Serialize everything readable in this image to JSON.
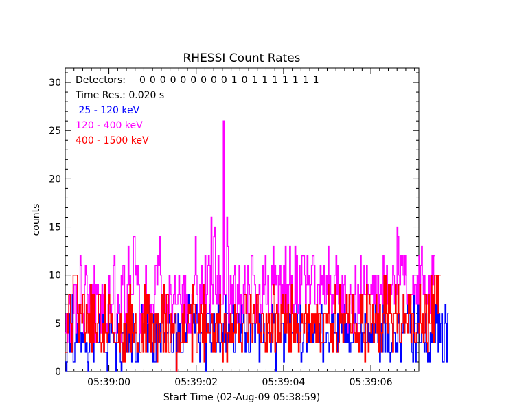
{
  "chart_data": {
    "type": "line",
    "title": "RHESSI Count Rates",
    "xlabel": "Start Time (02-Aug-09 05:38:59)",
    "ylabel": "counts",
    "x_tick_labels": [
      "05:39:00",
      "05:39:02",
      "05:39:04",
      "05:39:06"
    ],
    "x_tick_seconds": [
      1,
      3,
      5,
      7
    ],
    "xlim_seconds": [
      0,
      8.1
    ],
    "ylim": [
      0,
      31.5
    ],
    "y_ticks": [
      0,
      5,
      10,
      15,
      20,
      25,
      30
    ],
    "grid": false,
    "annotations": {
      "detectors_label": "Detectors:",
      "detectors_flags": "0 0 0 0 0 0 0 0 0 1 0 1 1 1 1 1 1 1",
      "time_res": "Time Res.: 0.020 s"
    },
    "series": [
      {
        "name": " 25 - 120 keV",
        "color": "#0000ff",
        "x_start": 0,
        "dx": 0.02,
        "values": [
          1,
          0,
          3,
          6,
          6,
          2,
          3,
          2,
          8,
          1,
          1,
          3,
          6,
          3,
          5,
          3,
          6,
          4,
          2,
          4,
          3,
          5,
          3,
          2,
          3,
          1,
          0,
          2,
          5,
          4,
          4,
          5,
          1,
          4,
          4,
          3,
          4,
          3,
          3,
          6,
          4,
          5,
          5,
          7,
          2,
          2,
          2,
          2,
          0,
          5,
          3,
          5,
          5,
          4,
          4,
          3,
          3,
          3,
          0,
          4,
          7,
          7,
          3,
          1,
          0,
          4,
          4,
          3,
          3,
          5,
          2,
          5,
          2,
          6,
          3,
          4,
          1,
          6,
          4,
          4,
          1,
          1,
          3,
          1,
          2,
          6,
          4,
          7,
          5,
          4,
          4,
          7,
          7,
          6,
          2,
          5,
          7,
          3,
          2,
          3,
          1,
          6,
          1,
          1,
          6,
          4,
          6,
          3,
          5,
          2,
          8,
          6,
          4,
          4,
          3,
          3,
          4,
          4,
          8,
          5,
          4,
          4,
          2,
          2,
          5,
          5,
          6,
          0,
          4,
          6,
          2,
          5,
          2,
          2,
          2,
          3,
          6,
          4,
          3,
          6,
          5,
          8,
          7,
          6,
          4,
          7,
          5,
          6,
          4,
          6,
          7,
          5,
          5,
          3,
          1,
          4,
          4,
          4,
          7,
          3,
          5,
          0,
          6,
          6,
          6,
          7,
          3,
          2,
          3,
          3,
          6,
          4,
          2,
          3,
          6,
          8,
          3,
          2,
          3,
          4,
          3,
          5,
          3,
          8,
          2,
          6,
          6,
          3,
          6,
          4,
          6,
          6,
          7,
          2,
          2,
          5,
          6,
          6,
          6,
          3,
          3,
          8,
          4,
          5,
          6,
          4,
          2,
          4,
          8,
          6,
          2,
          2,
          5,
          5,
          4,
          5,
          5,
          3,
          5,
          6,
          4,
          6,
          1,
          4,
          6,
          3,
          3,
          5,
          3,
          3,
          5,
          5,
          4,
          4,
          4,
          2,
          7,
          4,
          6,
          5,
          3,
          0,
          3,
          6,
          6,
          3,
          3,
          5,
          5,
          5,
          1,
          5,
          3,
          6,
          7,
          5,
          6,
          5,
          7,
          4,
          4,
          4,
          5,
          6,
          5,
          7,
          3,
          3,
          3,
          7,
          1,
          2,
          3,
          4,
          5,
          5,
          2,
          4,
          3,
          6,
          3,
          4,
          3,
          4,
          3,
          4,
          5,
          4,
          6,
          3,
          5,
          3,
          4,
          7,
          6,
          1,
          3,
          3,
          3,
          4,
          4,
          3,
          2,
          3,
          4,
          6,
          5,
          6,
          4,
          4,
          4,
          2,
          6,
          3,
          6,
          6,
          4,
          8,
          5,
          3,
          7,
          3,
          5,
          3,
          6,
          2,
          2,
          3,
          3,
          3,
          5,
          5,
          6,
          3,
          4,
          5,
          5,
          5,
          6,
          2,
          4,
          4,
          4,
          6,
          3,
          3,
          5,
          3,
          4,
          3,
          5,
          3,
          5,
          3,
          4,
          7,
          5,
          4,
          3,
          3,
          1,
          4,
          5,
          2,
          7,
          5,
          2,
          5,
          5,
          2,
          5,
          2,
          1,
          2,
          3,
          5,
          4,
          4,
          2,
          3,
          2,
          5,
          6,
          3,
          1,
          4,
          4,
          8,
          4,
          6,
          6,
          6,
          7,
          6,
          7,
          4,
          5,
          2,
          1,
          8,
          3,
          1,
          3,
          4,
          8,
          4,
          3,
          3,
          4,
          4,
          4,
          2,
          3,
          6,
          2,
          1,
          2,
          1,
          4,
          3,
          6,
          3,
          5,
          3,
          7,
          5,
          7,
          2,
          6,
          3,
          5,
          6,
          1,
          1,
          5,
          7,
          5,
          1,
          6
        ]
      },
      {
        "name": "120 - 400 keV",
        "color": "#ff00ff",
        "x_start": 0,
        "dx": 0.02,
        "values": [
          4,
          6,
          3,
          6,
          8,
          7,
          3,
          4,
          3,
          6,
          9,
          9,
          4,
          9,
          7,
          6,
          5,
          12,
          11,
          7,
          6,
          4,
          9,
          11,
          10,
          8,
          5,
          4,
          9,
          7,
          8,
          9,
          8,
          11,
          3,
          9,
          8,
          9,
          6,
          6,
          8,
          4,
          9,
          6,
          8,
          9,
          5,
          4,
          5,
          7,
          10,
          6,
          6,
          7,
          7,
          11,
          12,
          4,
          4,
          6,
          8,
          6,
          3,
          3,
          10,
          9,
          11,
          11,
          4,
          6,
          5,
          9,
          13,
          9,
          10,
          8,
          8,
          8,
          14,
          14,
          10,
          11,
          9,
          11,
          9,
          4,
          6,
          3,
          6,
          7,
          6,
          9,
          11,
          5,
          5,
          7,
          8,
          7,
          5,
          7,
          7,
          6,
          8,
          11,
          11,
          9,
          12,
          11,
          14,
          10,
          7,
          6,
          5,
          6,
          8,
          6,
          7,
          5,
          6,
          10,
          9,
          8,
          4,
          7,
          8,
          10,
          7,
          7,
          7,
          8,
          10,
          8,
          7,
          5,
          9,
          10,
          6,
          10,
          5,
          8,
          6,
          4,
          5,
          4,
          6,
          8,
          7,
          9,
          10,
          14,
          10,
          8,
          5,
          6,
          9,
          7,
          11,
          7,
          5,
          8,
          12,
          6,
          8,
          11,
          12,
          11,
          6,
          16,
          9,
          7,
          14,
          15,
          8,
          7,
          10,
          12,
          7,
          10,
          7,
          7,
          7,
          26,
          8,
          8,
          8,
          16,
          13,
          5,
          7,
          10,
          6,
          9,
          7,
          10,
          11,
          5,
          5,
          9,
          7,
          11,
          5,
          8,
          7,
          6,
          9,
          11,
          8,
          8,
          6,
          11,
          9,
          8,
          6,
          12,
          12,
          10,
          10,
          9,
          5,
          7,
          4,
          8,
          9,
          7,
          6,
          6,
          11,
          8,
          9,
          12,
          7,
          7,
          10,
          5,
          6,
          6,
          11,
          9,
          13,
          8,
          11,
          9,
          10,
          10,
          6,
          9,
          11,
          7,
          9,
          7,
          11,
          6,
          13,
          5,
          9,
          7,
          9,
          13,
          6,
          10,
          7,
          6,
          7,
          13,
          7,
          12,
          6,
          7,
          11,
          7,
          9,
          12,
          12,
          12,
          10,
          7,
          9,
          12,
          9,
          10,
          7,
          9,
          11,
          12,
          12,
          11,
          7,
          7,
          5,
          9,
          9,
          7,
          11,
          9,
          10,
          8,
          11,
          7,
          7,
          10,
          8,
          13,
          6,
          10,
          8,
          6,
          8,
          7,
          10,
          10,
          12,
          8,
          11,
          7,
          8,
          9,
          6,
          10,
          6,
          9,
          10,
          6,
          6,
          4,
          5,
          7,
          9,
          8,
          6,
          7,
          4,
          8,
          11,
          5,
          4,
          9,
          6,
          8,
          12,
          7,
          6,
          8,
          11,
          8,
          8,
          11,
          9,
          8,
          8,
          8,
          9,
          8,
          10,
          7,
          10,
          7,
          5,
          10,
          10,
          6,
          8,
          9,
          8,
          7,
          12,
          6,
          10,
          10,
          11,
          7,
          8,
          6,
          6,
          8,
          9,
          11,
          10,
          7,
          7,
          8,
          15,
          14,
          10,
          9,
          12,
          11,
          12,
          10,
          9,
          12,
          10,
          7,
          8,
          7,
          8,
          7,
          8,
          8,
          10,
          8,
          9,
          9,
          7,
          10,
          7,
          12,
          9,
          11,
          13,
          10,
          8,
          10,
          8,
          7,
          7,
          8,
          10,
          6,
          10,
          9,
          12,
          9,
          12
        ]
      },
      {
        "name": "400 - 1500 keV",
        "color": "#ff0000",
        "x_start": 0,
        "dx": 0.02,
        "values": [
          2,
          2,
          6,
          4,
          8,
          8,
          5,
          2,
          5,
          10,
          10,
          10,
          10,
          10,
          6,
          3,
          7,
          7,
          6,
          5,
          8,
          8,
          3,
          4,
          7,
          6,
          4,
          6,
          3,
          9,
          2,
          8,
          3,
          8,
          5,
          4,
          3,
          5,
          8,
          8,
          3,
          2,
          3,
          5,
          2,
          9,
          4,
          4,
          3,
          4,
          8,
          7,
          5,
          6,
          4,
          4,
          3,
          3,
          3,
          3,
          3,
          5,
          2,
          6,
          4,
          3,
          1,
          5,
          1,
          5,
          6,
          2,
          8,
          4,
          9,
          2,
          7,
          4,
          3,
          5,
          6,
          4,
          2,
          3,
          2,
          2,
          2,
          3,
          6,
          2,
          4,
          9,
          2,
          8,
          6,
          8,
          3,
          6,
          2,
          6,
          5,
          2,
          3,
          6,
          5,
          1,
          6,
          5,
          3,
          4,
          8,
          5,
          2,
          9,
          6,
          2,
          8,
          8,
          2,
          2,
          3,
          6,
          4,
          5,
          4,
          6,
          6,
          0,
          2,
          4,
          4,
          2,
          3,
          3,
          6,
          3,
          7,
          3,
          3,
          3,
          5,
          7,
          6,
          6,
          7,
          1,
          9,
          7,
          7,
          5,
          2,
          2,
          4,
          6,
          4,
          7,
          6,
          3,
          9,
          1,
          7,
          3,
          4,
          5,
          4,
          4,
          4,
          5,
          6,
          2,
          4,
          2,
          5,
          6,
          3,
          6,
          5,
          8,
          5,
          3,
          1,
          3,
          6,
          6,
          4,
          1,
          4,
          4,
          3,
          6,
          3,
          5,
          3,
          4,
          7,
          4,
          6,
          6,
          3,
          5,
          3,
          3,
          2,
          5,
          5,
          8,
          8,
          6,
          4,
          3,
          6,
          5,
          8,
          5,
          3,
          6,
          7,
          5,
          5,
          8,
          8,
          4,
          5,
          4,
          3,
          6,
          6,
          4,
          3,
          2,
          6,
          2,
          5,
          6,
          3,
          4,
          6,
          3,
          9,
          8,
          2,
          6,
          7,
          3,
          6,
          4,
          3,
          7,
          6,
          8,
          6,
          4,
          8,
          4,
          6,
          7,
          2,
          5,
          2,
          9,
          6,
          3,
          6,
          3,
          6,
          4,
          5,
          2,
          3,
          4,
          5,
          6,
          5,
          4,
          6,
          7,
          3,
          6,
          5,
          7,
          5,
          3,
          6,
          4,
          6,
          5,
          6,
          3,
          7,
          3,
          6,
          6,
          2,
          3,
          3,
          3,
          6,
          6,
          6,
          5,
          6,
          9,
          5,
          5,
          3,
          5,
          2,
          5,
          6,
          9,
          4,
          2,
          2,
          3,
          9,
          5,
          6,
          5,
          3,
          6,
          5,
          6,
          8,
          6,
          5,
          8,
          5,
          4,
          4,
          8,
          5,
          4,
          3,
          5,
          3,
          4,
          2,
          4,
          8,
          5,
          8,
          4,
          3,
          1,
          5,
          9,
          3,
          2,
          8,
          7,
          4,
          5,
          7,
          3,
          5,
          6,
          8,
          4,
          6,
          2,
          7,
          4,
          2,
          4,
          6,
          10,
          5,
          10,
          6,
          4,
          9,
          6,
          9,
          6,
          5,
          2,
          6,
          6,
          9,
          6,
          4,
          9,
          6,
          3,
          3,
          5,
          5,
          8,
          4,
          6,
          5,
          5,
          4,
          8,
          6,
          8,
          3,
          6,
          6,
          4,
          3,
          3,
          4,
          5,
          5,
          4,
          9,
          5,
          4,
          6,
          3,
          4,
          8,
          8,
          3,
          2,
          8,
          5,
          5,
          10,
          4,
          8,
          3,
          10,
          10,
          7,
          10,
          6,
          10,
          10
        ]
      }
    ]
  }
}
